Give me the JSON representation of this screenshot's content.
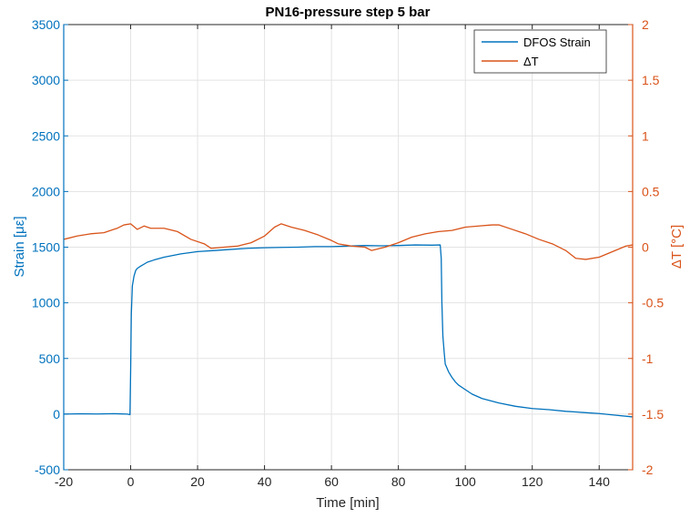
{
  "chart_data": {
    "type": "line",
    "title": "PN16-pressure step 5 bar",
    "xlabel": "Time [min]",
    "ylabel_left": "Strain [με]",
    "ylabel_right": "ΔT [°C]",
    "xlim": [
      -20,
      150
    ],
    "ylim_left": [
      -500,
      3500
    ],
    "ylim_right": [
      -2,
      2
    ],
    "xticks": [
      "-20",
      "0",
      "20",
      "40",
      "60",
      "80",
      "100",
      "120",
      "140"
    ],
    "yticks_left": [
      "-500",
      "0",
      "500",
      "1000",
      "1500",
      "2000",
      "2500",
      "3000",
      "3500"
    ],
    "yticks_right": [
      "-2",
      "-1.5",
      "-1",
      "-0.5",
      "0",
      "0.5",
      "1",
      "1.5",
      "2"
    ],
    "grid": true,
    "legend_position": "top-right",
    "colors": {
      "strain": "#0072bd",
      "deltaT": "#d95319",
      "grid": "#e3e3e3",
      "axis": "#262626"
    },
    "series": [
      {
        "name": "DFOS Strain",
        "axis": "left",
        "x": [
          -20,
          -15,
          -10,
          -5,
          -1,
          -0.2,
          0,
          0.2,
          0.5,
          1,
          1.5,
          2,
          3,
          5,
          7,
          10,
          15,
          20,
          25,
          30,
          35,
          40,
          45,
          50,
          55,
          60,
          65,
          70,
          75,
          80,
          85,
          90,
          92.5,
          92.8,
          93,
          93.3,
          93.7,
          94,
          95,
          96,
          97,
          98,
          100,
          102,
          105,
          110,
          115,
          120,
          125,
          130,
          135,
          140,
          145,
          150
        ],
        "values": [
          0,
          3,
          1,
          4,
          0,
          -5,
          400,
          900,
          1150,
          1240,
          1290,
          1310,
          1330,
          1365,
          1385,
          1410,
          1440,
          1460,
          1470,
          1480,
          1490,
          1495,
          1498,
          1500,
          1505,
          1505,
          1510,
          1515,
          1512,
          1515,
          1520,
          1518,
          1520,
          1400,
          1000,
          700,
          550,
          450,
          380,
          330,
          290,
          260,
          220,
          180,
          140,
          100,
          70,
          50,
          40,
          25,
          15,
          5,
          -10,
          -25
        ]
      },
      {
        "name": "ΔT",
        "axis": "right",
        "x": [
          -20,
          -16,
          -12,
          -8,
          -4,
          -2,
          0,
          2,
          4,
          6,
          10,
          14,
          18,
          22,
          24,
          28,
          32,
          36,
          40,
          43,
          45,
          48,
          52,
          56,
          60,
          62,
          66,
          70,
          72,
          76,
          80,
          84,
          88,
          92,
          96,
          100,
          104,
          108,
          110,
          114,
          118,
          122,
          126,
          130,
          133,
          136,
          140,
          144,
          148,
          150
        ],
        "values": [
          0.07,
          0.1,
          0.12,
          0.13,
          0.17,
          0.2,
          0.21,
          0.16,
          0.19,
          0.17,
          0.17,
          0.14,
          0.07,
          0.03,
          -0.01,
          0.0,
          0.01,
          0.04,
          0.1,
          0.18,
          0.21,
          0.18,
          0.15,
          0.11,
          0.06,
          0.03,
          0.01,
          0.0,
          -0.03,
          0.0,
          0.04,
          0.09,
          0.12,
          0.14,
          0.15,
          0.18,
          0.19,
          0.2,
          0.2,
          0.16,
          0.12,
          0.07,
          0.03,
          -0.03,
          -0.1,
          -0.11,
          -0.09,
          -0.04,
          0.01,
          0.02
        ]
      }
    ]
  }
}
